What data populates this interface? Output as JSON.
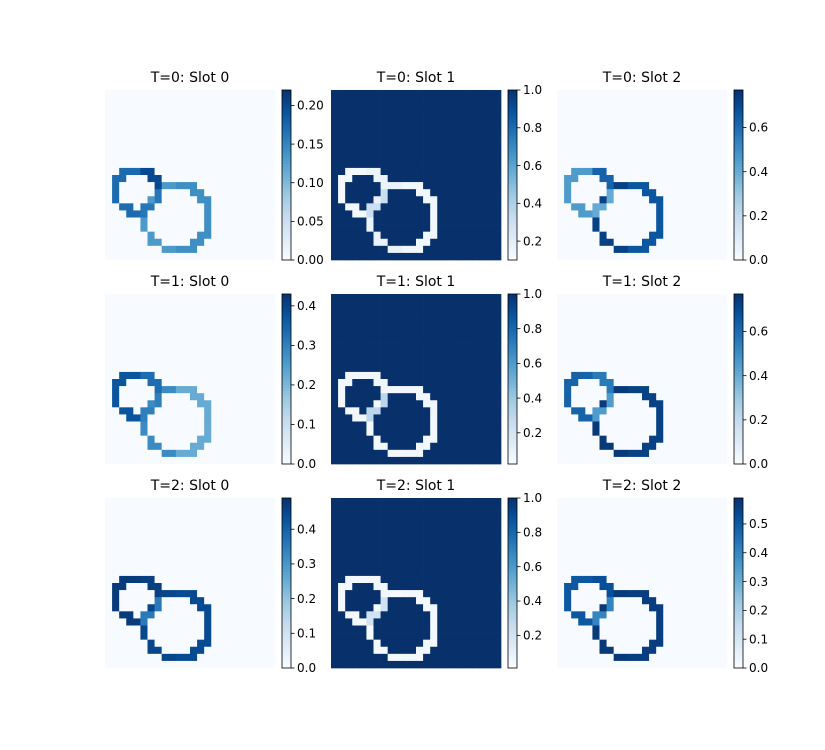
{
  "chart_data": {
    "type": "heatmap",
    "colormap": "Blues",
    "colormap_stops": [
      "#f7fbff",
      "#deebf7",
      "#c6dbef",
      "#9ecae1",
      "#6baed6",
      "#4292c6",
      "#2171b5",
      "#08519c",
      "#08306b"
    ],
    "grid_size": [
      24,
      24
    ],
    "axes_visible": false,
    "panels": [
      {
        "title": "T=0: Slot 0",
        "vmin": 0.0,
        "vmax": 0.22,
        "background": 0.0,
        "ticks": [
          "0.00",
          "0.05",
          "0.10",
          "0.15",
          "0.20"
        ],
        "tick_values": [
          0.0,
          0.05,
          0.1,
          0.15,
          0.2
        ],
        "c1_left": 0.17,
        "c1_right": 0.2,
        "c2_left": 0.13,
        "c2_right": 0.14,
        "overlap": 0.16
      },
      {
        "title": "T=0: Slot 1",
        "vmin": 0.1,
        "vmax": 1.0,
        "background": 1.0,
        "ticks": [
          "0.2",
          "0.4",
          "0.6",
          "0.8",
          "1.0"
        ],
        "tick_values": [
          0.2,
          0.4,
          0.6,
          0.8,
          1.0
        ],
        "c1_left": 0.12,
        "c1_right": 0.15,
        "c2_left": 0.16,
        "c2_right": 0.13,
        "overlap": 0.3
      },
      {
        "title": "T=0: Slot 2",
        "vmin": 0.0,
        "vmax": 0.77,
        "background": 0.0,
        "ticks": [
          "0.0",
          "0.2",
          "0.4",
          "0.6"
        ],
        "tick_values": [
          0.0,
          0.2,
          0.4,
          0.6
        ],
        "c1_left": 0.45,
        "c1_right": 0.62,
        "c2_left": 0.72,
        "c2_right": 0.66,
        "overlap": 0.4
      },
      {
        "title": "T=1: Slot 0",
        "vmin": 0.0,
        "vmax": 0.43,
        "background": 0.0,
        "ticks": [
          "0.0",
          "0.1",
          "0.2",
          "0.3",
          "0.4"
        ],
        "tick_values": [
          0.0,
          0.1,
          0.2,
          0.3,
          0.4
        ],
        "c1_left": 0.37,
        "c1_right": 0.33,
        "c2_left": 0.28,
        "c2_right": 0.22,
        "overlap": 0.3
      },
      {
        "title": "T=1: Slot 1",
        "vmin": 0.02,
        "vmax": 1.0,
        "background": 1.0,
        "ticks": [
          "0.2",
          "0.4",
          "0.6",
          "0.8",
          "1.0"
        ],
        "tick_values": [
          0.2,
          0.4,
          0.6,
          0.8,
          1.0
        ],
        "c1_left": 0.05,
        "c1_right": 0.06,
        "c2_left": 0.04,
        "c2_right": 0.05,
        "overlap": 0.3
      },
      {
        "title": "T=1: Slot 2",
        "vmin": 0.0,
        "vmax": 0.77,
        "background": 0.0,
        "ticks": [
          "0.0",
          "0.2",
          "0.4",
          "0.6"
        ],
        "tick_values": [
          0.0,
          0.2,
          0.4,
          0.6
        ],
        "c1_left": 0.62,
        "c1_right": 0.55,
        "c2_left": 0.74,
        "c2_right": 0.72,
        "overlap": 0.45
      },
      {
        "title": "T=2: Slot 0",
        "vmin": 0.0,
        "vmax": 0.49,
        "background": 0.0,
        "ticks": [
          "0.0",
          "0.1",
          "0.2",
          "0.3",
          "0.4"
        ],
        "tick_values": [
          0.0,
          0.1,
          0.2,
          0.3,
          0.4
        ],
        "c1_left": 0.47,
        "c1_right": 0.46,
        "c2_left": 0.45,
        "c2_right": 0.44,
        "overlap": 0.35
      },
      {
        "title": "T=2: Slot 1",
        "vmin": 0.01,
        "vmax": 1.0,
        "background": 1.0,
        "ticks": [
          "0.2",
          "0.4",
          "0.6",
          "0.8",
          "1.0"
        ],
        "tick_values": [
          0.2,
          0.4,
          0.6,
          0.8,
          1.0
        ],
        "c1_left": 0.03,
        "c1_right": 0.04,
        "c2_left": 0.02,
        "c2_right": 0.03,
        "overlap": 0.2
      },
      {
        "title": "T=2: Slot 2",
        "vmin": 0.0,
        "vmax": 0.59,
        "background": 0.0,
        "ticks": [
          "0.0",
          "0.1",
          "0.2",
          "0.3",
          "0.4",
          "0.5"
        ],
        "tick_values": [
          0.0,
          0.1,
          0.2,
          0.3,
          0.4,
          0.5
        ],
        "c1_left": 0.5,
        "c1_right": 0.52,
        "c2_left": 0.57,
        "c2_right": 0.56,
        "overlap": 0.4
      }
    ]
  }
}
